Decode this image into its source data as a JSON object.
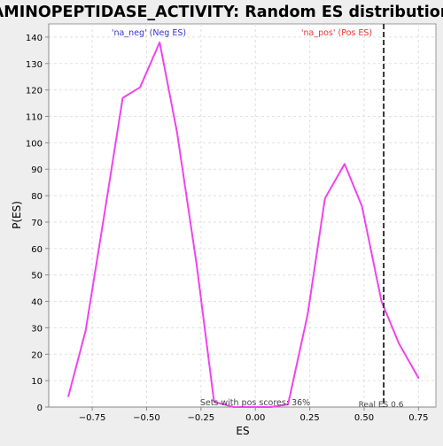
{
  "chart_data": {
    "type": "line",
    "title": "AMINOPEPTIDASE_ACTIVITY: Random ES distribution",
    "xlabel": "ES",
    "ylabel": "P(ES)",
    "xlim": [
      -0.95,
      0.83
    ],
    "ylim": [
      0,
      145
    ],
    "x_ticks": [
      -0.75,
      -0.5,
      -0.25,
      0.0,
      0.25,
      0.5,
      0.75
    ],
    "x_tick_labels": [
      "−0.75",
      "−0.50",
      "−0.25",
      "0.00",
      "0.25",
      "0.50",
      "0.75"
    ],
    "y_ticks": [
      0,
      10,
      20,
      30,
      40,
      50,
      60,
      70,
      80,
      90,
      100,
      110,
      120,
      130,
      140
    ],
    "grid": true,
    "series": [
      {
        "color": "#ee44ee",
        "x": [
          -0.86,
          -0.78,
          -0.7,
          -0.61,
          -0.53,
          -0.44,
          -0.36,
          -0.27,
          -0.19,
          -0.1,
          -0.02,
          0.07,
          0.15,
          0.24,
          0.32,
          0.41,
          0.49,
          0.58,
          0.66,
          0.75
        ],
        "y": [
          4,
          29,
          70,
          117,
          121,
          138,
          104,
          54,
          2,
          0,
          0,
          0,
          1,
          35,
          79,
          92,
          76,
          40,
          24,
          11
        ]
      }
    ],
    "annotations": {
      "neg_label": "'na_neg' (Neg ES)",
      "neg_color": "#3333cc",
      "pos_label": "'na_pos' (Pos ES)",
      "pos_color": "#ee3333",
      "sets_text": "Sets with pos scores: 36%",
      "real_es_text": "Real ES 0.6",
      "real_es": 0.59
    }
  }
}
